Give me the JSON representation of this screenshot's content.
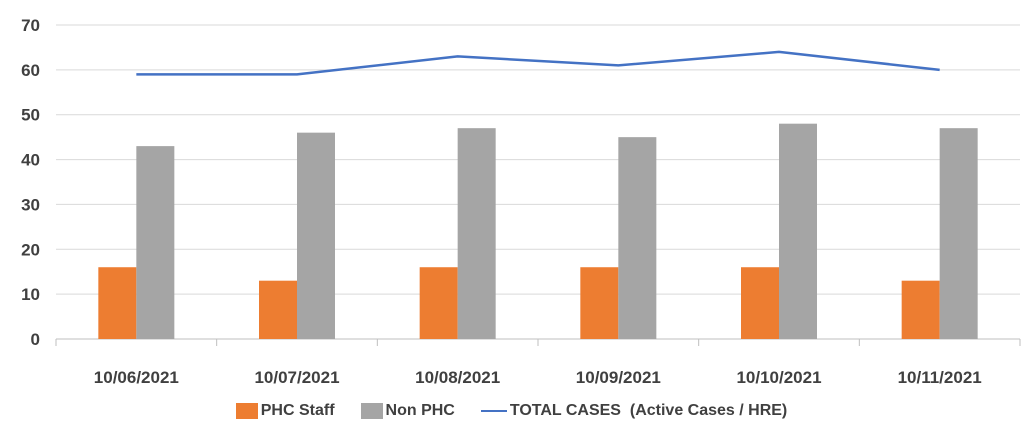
{
  "colors": {
    "phc": "#ED7D31",
    "non_phc": "#A5A5A5",
    "total": "#4472C4",
    "grid": "#D9D9D9"
  },
  "chart_data": {
    "type": "bar",
    "categories": [
      "10/06/2021",
      "10/07/2021",
      "10/08/2021",
      "10/09/2021",
      "10/10/2021",
      "10/11/2021"
    ],
    "series": [
      {
        "name": "PHC Staff",
        "type": "bar",
        "values": [
          16,
          13,
          16,
          16,
          16,
          13
        ]
      },
      {
        "name": "Non PHC",
        "type": "bar",
        "values": [
          43,
          46,
          47,
          45,
          48,
          47
        ]
      },
      {
        "name": "TOTAL CASES  (Active Cases / HRE)",
        "type": "line",
        "values": [
          59,
          59,
          63,
          61,
          64,
          60
        ]
      }
    ],
    "y_ticks": [
      "0",
      "10",
      "20",
      "30",
      "40",
      "50",
      "60",
      "70"
    ],
    "ylim": [
      0,
      70
    ],
    "grid": true,
    "legend": "bottom"
  },
  "legend": {
    "phc_label": "PHC Staff",
    "non_phc_label": "Non PHC",
    "total_label": "TOTAL CASES  (Active Cases / HRE)"
  }
}
